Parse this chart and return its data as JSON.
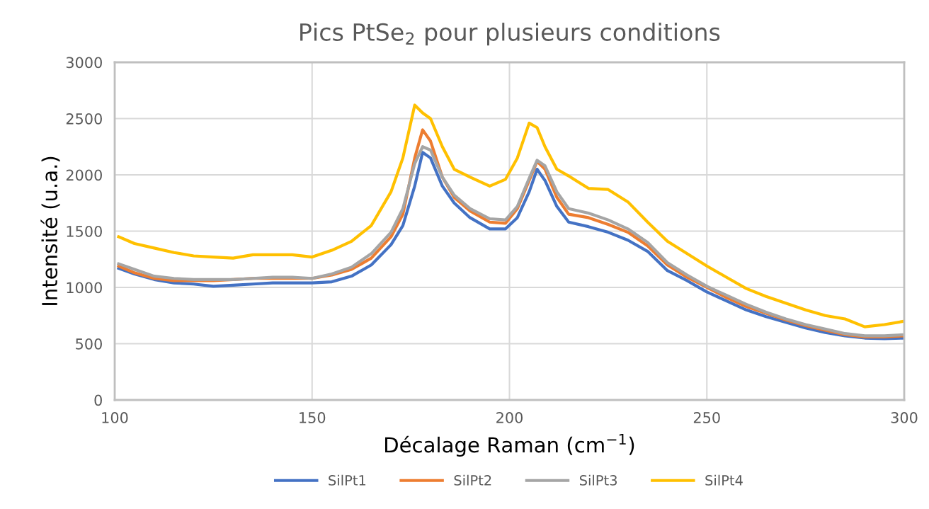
{
  "chart_data": {
    "type": "line",
    "title": "Pics PtSe$_{2}$ pour plusieurs conditions",
    "xlabel": "Décalage Raman (cm$^{−1}$)",
    "ylabel": "Intensité (u.a.)",
    "x": [
      101,
      105,
      110,
      115,
      120,
      125,
      130,
      135,
      140,
      145,
      150,
      155,
      160,
      165,
      170,
      173,
      176,
      178,
      180,
      183,
      186,
      190,
      195,
      199,
      202,
      205,
      207,
      209,
      212,
      215,
      220,
      225,
      230,
      235,
      240,
      245,
      250,
      255,
      260,
      265,
      270,
      275,
      280,
      285,
      290,
      295,
      300
    ],
    "series": [
      {
        "name": "SilPt1",
        "color": "#4472c4",
        "values": [
          1170,
          1120,
          1070,
          1040,
          1030,
          1010,
          1020,
          1030,
          1040,
          1040,
          1040,
          1050,
          1100,
          1200,
          1380,
          1550,
          1900,
          2200,
          2150,
          1900,
          1750,
          1620,
          1520,
          1520,
          1620,
          1850,
          2050,
          1950,
          1720,
          1580,
          1540,
          1490,
          1420,
          1320,
          1150,
          1060,
          960,
          880,
          800,
          740,
          690,
          640,
          600,
          570,
          550,
          545,
          550
        ]
      },
      {
        "name": "SilPt2",
        "color": "#ed7d31",
        "values": [
          1190,
          1130,
          1080,
          1060,
          1060,
          1060,
          1070,
          1080,
          1080,
          1080,
          1080,
          1110,
          1160,
          1260,
          1450,
          1650,
          2150,
          2400,
          2300,
          1980,
          1800,
          1680,
          1580,
          1570,
          1700,
          1950,
          2120,
          2050,
          1800,
          1650,
          1620,
          1560,
          1490,
          1370,
          1200,
          1090,
          1000,
          910,
          830,
          770,
          710,
          660,
          620,
          580,
          560,
          560,
          570
        ]
      },
      {
        "name": "SilPt3",
        "color": "#a5a5a5",
        "values": [
          1210,
          1160,
          1100,
          1080,
          1070,
          1070,
          1070,
          1080,
          1090,
          1090,
          1080,
          1120,
          1180,
          1300,
          1490,
          1700,
          2100,
          2250,
          2220,
          1980,
          1820,
          1700,
          1610,
          1600,
          1720,
          1970,
          2130,
          2080,
          1850,
          1700,
          1660,
          1600,
          1520,
          1400,
          1220,
          1110,
          1010,
          930,
          850,
          780,
          720,
          670,
          630,
          590,
          570,
          570,
          580
        ]
      },
      {
        "name": "SilPt4",
        "color": "#ffc000",
        "values": [
          1450,
          1390,
          1350,
          1310,
          1280,
          1270,
          1260,
          1290,
          1290,
          1290,
          1270,
          1330,
          1410,
          1550,
          1850,
          2150,
          2620,
          2550,
          2500,
          2250,
          2050,
          1980,
          1900,
          1960,
          2150,
          2460,
          2420,
          2250,
          2050,
          1990,
          1880,
          1870,
          1760,
          1580,
          1410,
          1300,
          1190,
          1090,
          990,
          920,
          860,
          800,
          750,
          720,
          650,
          670,
          700
        ]
      }
    ],
    "xlim": [
      100,
      300
    ],
    "xticks": [
      100,
      150,
      200,
      250,
      300
    ],
    "ylim": [
      0,
      3000
    ],
    "yticks": [
      0,
      500,
      1000,
      1500,
      2000,
      2500,
      3000
    ],
    "grid": true,
    "legend": "bottom",
    "marker": "none",
    "line_style": "solid"
  }
}
